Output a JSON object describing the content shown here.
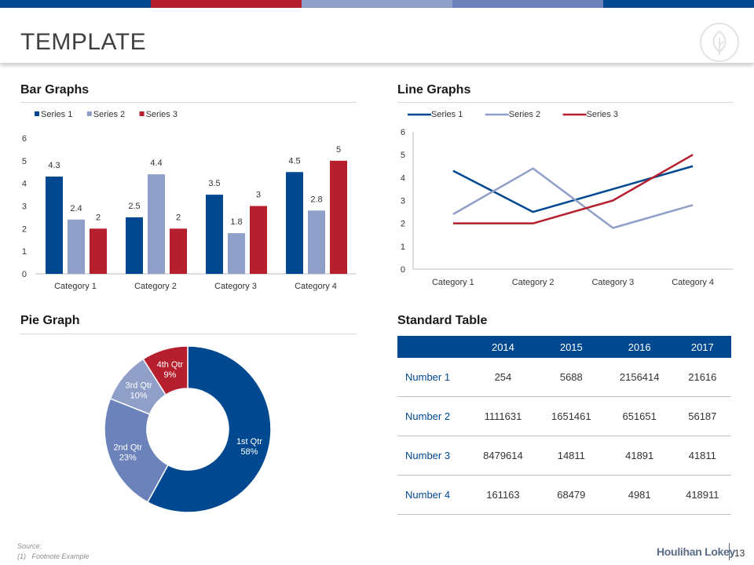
{
  "header": {
    "title": "TEMPLATE",
    "topbar_colors": [
      "#004990",
      "#b51f2e",
      "#8f9fc8",
      "#6b82ba",
      "#004990"
    ]
  },
  "sections": {
    "bar": "Bar Graphs",
    "line": "Line Graphs",
    "pie": "Pie Graph",
    "table": "Standard Table"
  },
  "colors": {
    "series1": "#004990",
    "series2": "#8f9fc8",
    "series3": "#b51f2e",
    "pie_q2": "#6b82ba",
    "pie_q3": "#8f9fc8"
  },
  "chart_data": [
    {
      "type": "bar",
      "title": "Bar Graphs",
      "categories": [
        "Category 1",
        "Category 2",
        "Category 3",
        "Category 4"
      ],
      "series": [
        {
          "name": "Series 1",
          "values": [
            4.3,
            2.5,
            3.5,
            4.5
          ]
        },
        {
          "name": "Series 2",
          "values": [
            2.4,
            4.4,
            1.8,
            2.8
          ]
        },
        {
          "name": "Series 3",
          "values": [
            2,
            2,
            3,
            5
          ]
        }
      ],
      "value_labels": [
        [
          "4.3",
          "2.5",
          "3.5",
          "4.5"
        ],
        [
          "2.4",
          "4.4",
          "1.8",
          "2.8"
        ],
        [
          "2",
          "2",
          "3",
          "5"
        ]
      ],
      "ylim": [
        0,
        6
      ],
      "yticks": [
        0,
        1,
        2,
        3,
        4,
        5,
        6
      ],
      "ytick_labels": [
        "0",
        "1",
        "2",
        "3",
        "4",
        "5",
        "6"
      ],
      "legend": "top-left",
      "grid": false
    },
    {
      "type": "line",
      "title": "Line Graphs",
      "categories": [
        "Category 1",
        "Category 2",
        "Category 3",
        "Category 4"
      ],
      "series": [
        {
          "name": "Series 1",
          "values": [
            4.3,
            2.5,
            3.5,
            4.5
          ]
        },
        {
          "name": "Series 2",
          "values": [
            2.4,
            4.4,
            1.8,
            2.8
          ]
        },
        {
          "name": "Series 3",
          "values": [
            2,
            2,
            3,
            5
          ]
        }
      ],
      "ylim": [
        0,
        6
      ],
      "yticks": [
        0,
        1,
        2,
        3,
        4,
        5,
        6
      ],
      "ytick_labels": [
        "0",
        "1",
        "2",
        "3",
        "4",
        "5",
        "6"
      ],
      "legend": "top-left",
      "grid": false
    },
    {
      "type": "pie",
      "title": "Pie Graph",
      "slices": [
        {
          "label": "1st Qtr",
          "value": 58,
          "pct_label": "58%"
        },
        {
          "label": "2nd Qtr",
          "value": 23,
          "pct_label": "23%"
        },
        {
          "label": "3rd Qtr",
          "value": 10,
          "pct_label": "10%"
        },
        {
          "label": "4th Qtr",
          "value": 9,
          "pct_label": "9%"
        }
      ],
      "donut": true
    },
    {
      "type": "table",
      "title": "Standard Table",
      "columns": [
        "",
        "2014",
        "2015",
        "2016",
        "2017"
      ],
      "rows": [
        {
          "label": "Number 1",
          "cells": [
            "254",
            "5688",
            "2156414",
            "21616"
          ]
        },
        {
          "label": "Number 2",
          "cells": [
            "1111631",
            "1651461",
            "651651",
            "56187"
          ]
        },
        {
          "label": "Number 3",
          "cells": [
            "8479614",
            "14811",
            "41891",
            "41811"
          ]
        },
        {
          "label": "Number 4",
          "cells": [
            "161163",
            "68479",
            "4981",
            "418911"
          ]
        }
      ]
    }
  ],
  "footer": {
    "source": "Source:",
    "footnote_num": "(1)",
    "footnote_text": "Footnote Example",
    "brand": "Houlihan Lokey",
    "page": "13"
  }
}
